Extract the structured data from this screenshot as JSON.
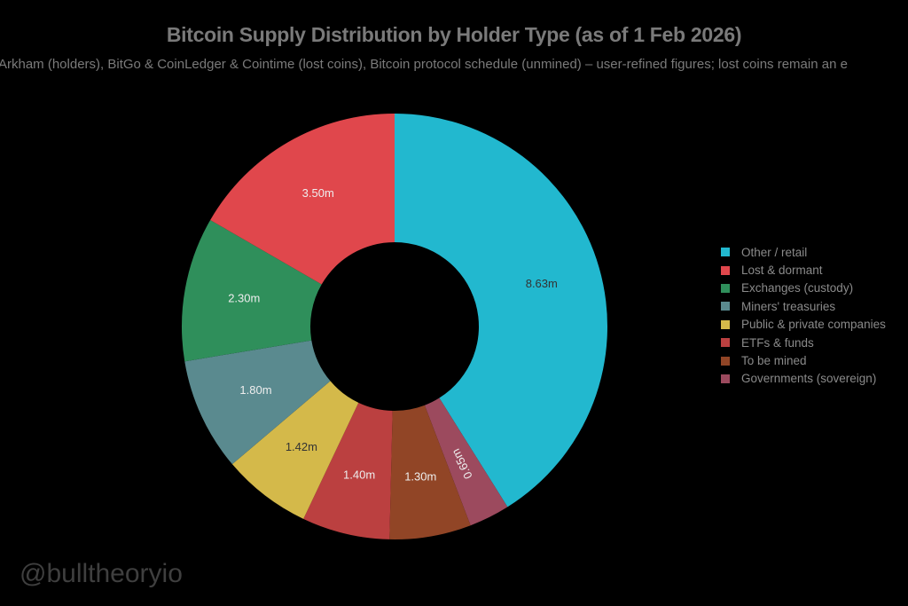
{
  "chart_data": {
    "type": "pie",
    "title": "Bitcoin Supply Distribution by Holder Type (as of 1 Feb 2026)",
    "subtitle": "Arkham (holders), BitGo & CoinLedger & Cointime (lost coins), Bitcoin protocol schedule (unmined) – user-refined figures; lost coins remain an e",
    "unit": "m",
    "hole": true,
    "legend_position": "right",
    "slices": [
      {
        "label": "Other / retail",
        "value": 8.63,
        "text": "8.63m",
        "color": "#22b8cf"
      },
      {
        "label": "Lost & dormant",
        "value": 3.5,
        "text": "3.50m",
        "color": "#e0474c"
      },
      {
        "label": "Exchanges (custody)",
        "value": 2.3,
        "text": "2.30m",
        "color": "#2f8f5b"
      },
      {
        "label": "Miners' treasuries",
        "value": 1.8,
        "text": "1.80m",
        "color": "#5a8a8f"
      },
      {
        "label": "Public & private companies",
        "value": 1.42,
        "text": "1.42m",
        "color": "#d4b94a"
      },
      {
        "label": "ETFs & funds",
        "value": 1.4,
        "text": "1.40m",
        "color": "#bb4040"
      },
      {
        "label": "To be mined",
        "value": 1.3,
        "text": "1.30m",
        "color": "#914526"
      },
      {
        "label": "Governments (sovereign)",
        "value": 0.65,
        "text": "0.65m",
        "color": "#9c4a5e"
      }
    ]
  },
  "watermark": "@bulltheoryio"
}
